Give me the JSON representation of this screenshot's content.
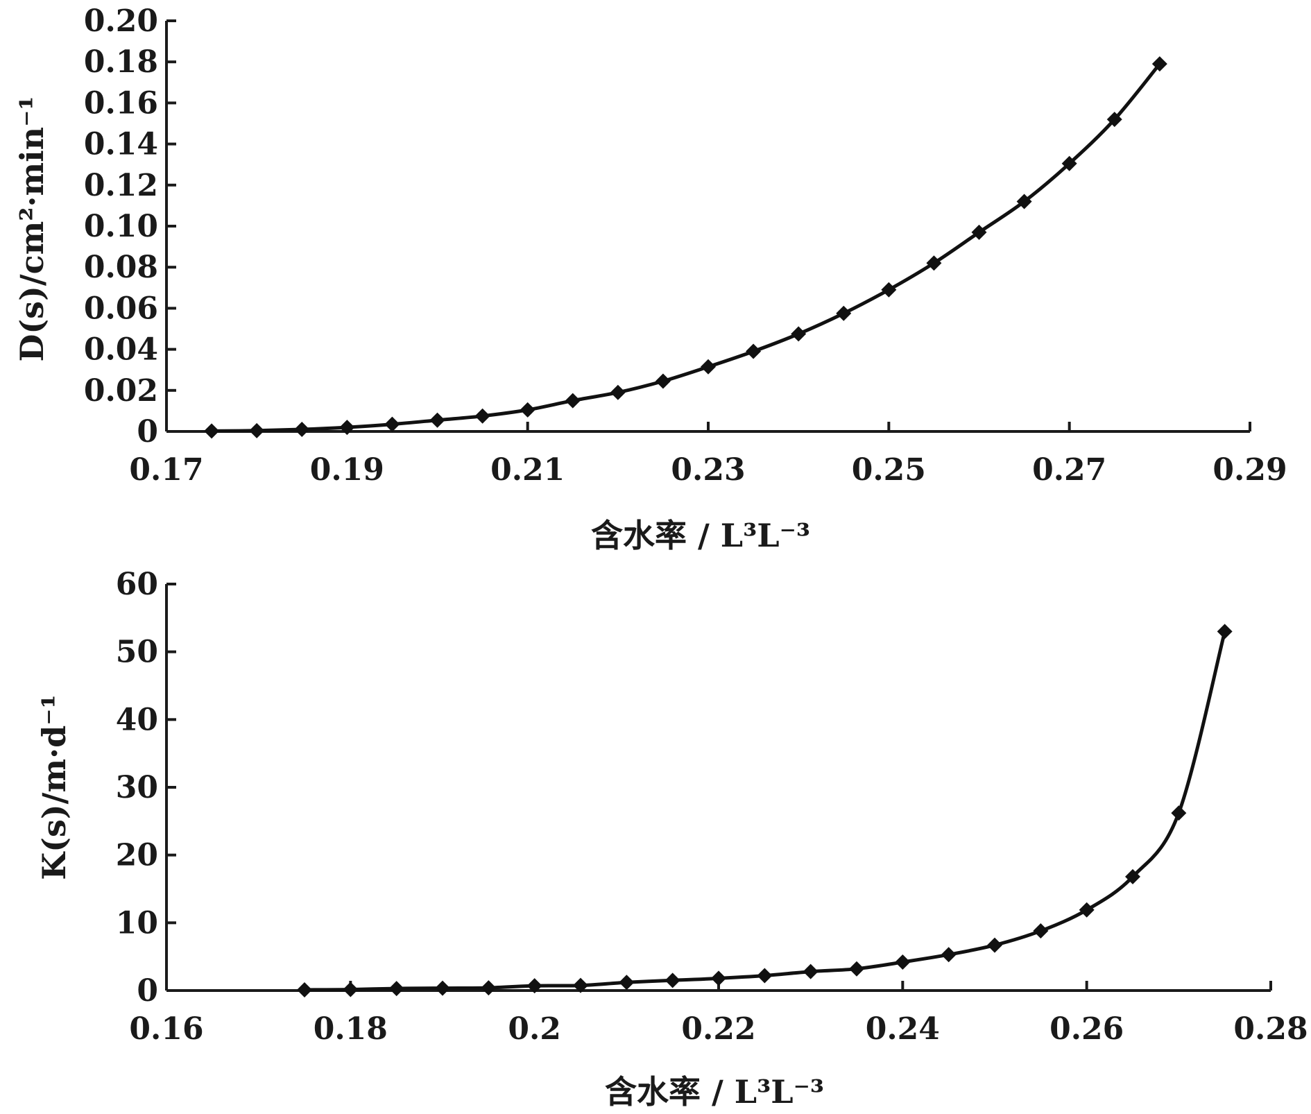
{
  "chart_data": [
    {
      "type": "line",
      "title": "",
      "xlabel": "含水率 / L³L⁻³",
      "ylabel": "D(s)/cm²·min⁻¹",
      "xlim": [
        0.17,
        0.29
      ],
      "ylim": [
        0,
        0.2
      ],
      "x_ticks": [
        "0.17",
        "0.19",
        "0.21",
        "0.23",
        "0.25",
        "0.27",
        "0.29"
      ],
      "y_ticks": [
        "0",
        "0.02",
        "0.04",
        "0.06",
        "0.08",
        "0.10",
        "0.12",
        "0.14",
        "0.16",
        "0.18",
        "0.20"
      ],
      "grid": false,
      "legend": "none",
      "series": [
        {
          "x": [
            0.175,
            0.18,
            0.185,
            0.19,
            0.195,
            0.2,
            0.205,
            0.21,
            0.215,
            0.22,
            0.225,
            0.23,
            0.235,
            0.24,
            0.245,
            0.25,
            0.255,
            0.26,
            0.265,
            0.27,
            0.275,
            0.28
          ],
          "y": [
            0.0002,
            0.0004,
            0.001,
            0.002,
            0.0035,
            0.0055,
            0.0075,
            0.0105,
            0.015,
            0.019,
            0.0245,
            0.0315,
            0.039,
            0.0475,
            0.0575,
            0.069,
            0.082,
            0.097,
            0.112,
            0.1305,
            0.152,
            0.179
          ],
          "marker": "diamond",
          "color": "#111111"
        }
      ]
    },
    {
      "type": "line",
      "title": "",
      "xlabel": "含水率 / L³L⁻³",
      "ylabel": "K(s)/m·d⁻¹",
      "xlim": [
        0.16,
        0.28
      ],
      "ylim": [
        0,
        60
      ],
      "x_ticks": [
        "0.16",
        "0.18",
        "0.2",
        "0.22",
        "0.24",
        "0.26",
        "0.28"
      ],
      "y_ticks": [
        "0",
        "10",
        "20",
        "30",
        "40",
        "50",
        "60"
      ],
      "grid": false,
      "legend": "none",
      "series": [
        {
          "x": [
            0.175,
            0.18,
            0.185,
            0.19,
            0.195,
            0.2,
            0.205,
            0.21,
            0.215,
            0.22,
            0.225,
            0.23,
            0.235,
            0.24,
            0.245,
            0.25,
            0.255,
            0.26,
            0.265,
            0.27,
            0.275
          ],
          "y": [
            0.1,
            0.15,
            0.3,
            0.35,
            0.4,
            0.7,
            0.75,
            1.2,
            1.5,
            1.8,
            2.2,
            2.8,
            3.2,
            4.2,
            5.3,
            6.7,
            8.8,
            11.9,
            16.8,
            26.2,
            53.0
          ],
          "marker": "diamond",
          "color": "#111111"
        }
      ]
    }
  ]
}
